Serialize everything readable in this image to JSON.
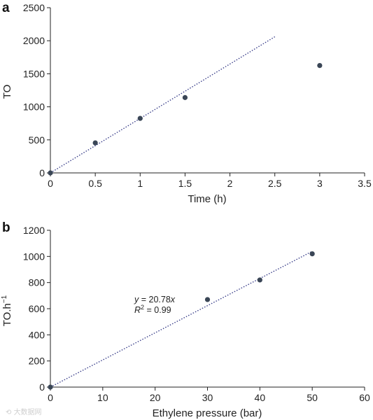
{
  "chart_data": [
    {
      "type": "scatter",
      "panel_label": "a",
      "xlabel": "Time (h)",
      "ylabel": "TO",
      "xlim": [
        0,
        3.5
      ],
      "ylim": [
        0,
        2500
      ],
      "xticks": [
        0,
        0.5,
        1,
        1.5,
        2,
        2.5,
        3,
        3.5
      ],
      "yticks": [
        0,
        500,
        1000,
        1500,
        2000,
        2500
      ],
      "series": [
        {
          "points": [
            [
              0,
              0
            ],
            [
              0.5,
              455
            ],
            [
              1,
              825
            ],
            [
              1.5,
              1140
            ],
            [
              3,
              1625
            ]
          ]
        }
      ],
      "fit_line": {
        "x": [
          0,
          2.5
        ],
        "y": [
          0,
          2060
        ],
        "style": "dotted"
      },
      "grid": false,
      "legend": "none"
    },
    {
      "type": "scatter",
      "panel_label": "b",
      "xlabel": "Ethylene pressure (bar)",
      "ylabel": "TO.h",
      "ylabel_sup": "−1",
      "xlim": [
        0,
        60
      ],
      "ylim": [
        0,
        1200
      ],
      "xticks": [
        0,
        10,
        20,
        30,
        40,
        50,
        60
      ],
      "yticks": [
        0,
        200,
        400,
        600,
        800,
        1000,
        1200
      ],
      "series": [
        {
          "points": [
            [
              0,
              0
            ],
            [
              30,
              670
            ],
            [
              40,
              820
            ],
            [
              50,
              1020
            ]
          ]
        }
      ],
      "fit_line": {
        "x": [
          0,
          50
        ],
        "y": [
          0,
          1039
        ],
        "style": "dotted"
      },
      "annotation": {
        "eq_y": "y",
        "eq_rest": " = 20.78",
        "eq_x": "x",
        "r2_R": "R",
        "r2_sup": "2",
        "r2_rest": " = 0.99"
      },
      "grid": false,
      "legend": "none"
    }
  ],
  "colors": {
    "marker": "#3a4656",
    "fit_line": "#3a3f8a",
    "axis": "#222222"
  },
  "watermark": "大数据网"
}
